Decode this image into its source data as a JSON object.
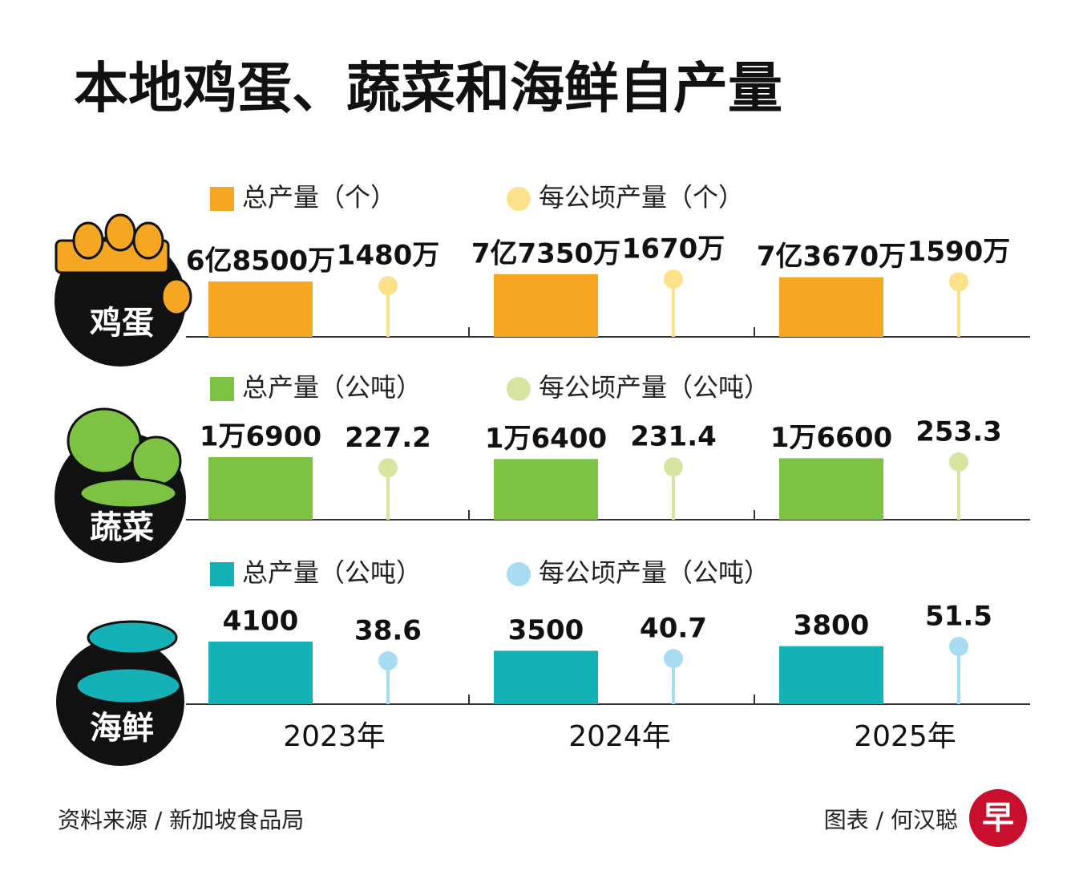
{
  "title": "本地鸡蛋、蔬菜和海鲜自产量",
  "source": "资料来源 / 新加坡食品局",
  "credit": "图表 / 何汉聪",
  "logo": "早",
  "chart_data": [
    {
      "type": "bar-lollipop",
      "label": "鸡蛋",
      "series": [
        {
          "name": "总产量（个）",
          "color": "#f5a623",
          "values": [
            685000000,
            773500000,
            736700000
          ],
          "value_labels": [
            "6亿8500万",
            "7亿7350万",
            "7亿3670万"
          ]
        },
        {
          "name": "每公顷产量（个）",
          "color": "#fde08a",
          "values": [
            14800000,
            16700000,
            15900000
          ],
          "value_labels": [
            "1480万",
            "1670万",
            "1590万"
          ]
        }
      ]
    },
    {
      "type": "bar-lollipop",
      "label": "蔬菜",
      "series": [
        {
          "name": "总产量（公吨）",
          "color": "#7dc242",
          "values": [
            16900,
            16400,
            16600
          ],
          "value_labels": [
            "1万6900",
            "1万6400",
            "1万6600"
          ]
        },
        {
          "name": "每公顷产量（公吨）",
          "color": "#d6e6a0",
          "values": [
            227.2,
            231.4,
            253.3
          ]
        }
      ]
    },
    {
      "type": "bar-lollipop",
      "label": "海鲜",
      "categories": [
        "2023年",
        "2024年",
        "2025年"
      ],
      "series": [
        {
          "name": "总产量（公吨）",
          "color": "#14b1b6",
          "values": [
            4100,
            3500,
            3800
          ]
        },
        {
          "name": "每公顷产量（公吨）",
          "color": "#a8dcf5",
          "values": [
            38.6,
            40.7,
            51.5
          ]
        }
      ]
    }
  ]
}
